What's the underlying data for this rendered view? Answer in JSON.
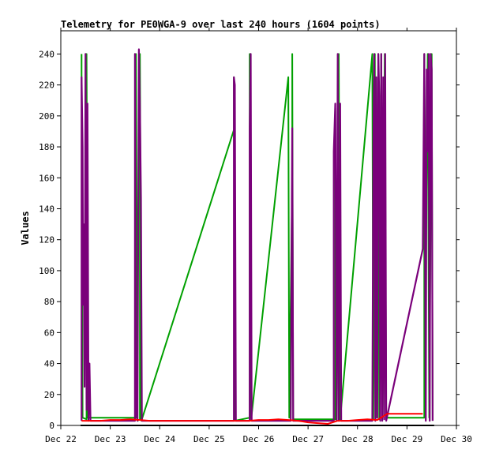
{
  "chart_data": {
    "type": "line",
    "title": "Telemetry for PE0WGA-9 over last 240 hours (1604 points)",
    "xlabel": "",
    "ylabel": "Values",
    "x_ticks": [
      "Dec 22",
      "Dec 23",
      "Dec 24",
      "Dec 25",
      "Dec 26",
      "Dec 27",
      "Dec 28",
      "Dec 29",
      "Dec 30"
    ],
    "xlim_days": [
      22,
      30
    ],
    "ylim": [
      0,
      255
    ],
    "y_ticks": [
      0,
      20,
      40,
      60,
      80,
      100,
      120,
      140,
      160,
      180,
      200,
      220,
      240
    ],
    "grid": false,
    "legend": "none",
    "series": [
      {
        "color": "#00a000",
        "points": [
          [
            22.42,
            240
          ],
          [
            22.42,
            225
          ],
          [
            22.44,
            5
          ],
          [
            22.52,
            4
          ],
          [
            22.52,
            240
          ],
          [
            22.55,
            5
          ],
          [
            23.52,
            5
          ],
          [
            23.52,
            240
          ],
          [
            23.55,
            3
          ],
          [
            23.6,
            4
          ],
          [
            23.6,
            240
          ],
          [
            23.63,
            3
          ],
          [
            25.5,
            191
          ],
          [
            25.5,
            225
          ],
          [
            25.52,
            3
          ],
          [
            25.82,
            5
          ],
          [
            25.82,
            240
          ],
          [
            25.85,
            4
          ],
          [
            26.6,
            225
          ],
          [
            26.62,
            5
          ],
          [
            26.68,
            160
          ],
          [
            26.68,
            240
          ],
          [
            26.7,
            4
          ],
          [
            27.55,
            4
          ],
          [
            27.55,
            205
          ],
          [
            27.58,
            3
          ],
          [
            27.62,
            240
          ],
          [
            27.65,
            4
          ],
          [
            28.3,
            240
          ],
          [
            28.32,
            4
          ],
          [
            28.35,
            240
          ],
          [
            28.37,
            5
          ],
          [
            28.42,
            240
          ],
          [
            28.44,
            4
          ],
          [
            28.48,
            240
          ],
          [
            28.5,
            5
          ],
          [
            28.55,
            240
          ],
          [
            28.58,
            5
          ],
          [
            29.35,
            5
          ],
          [
            29.35,
            240
          ],
          [
            29.38,
            110
          ],
          [
            29.42,
            240
          ],
          [
            29.45,
            5
          ],
          [
            29.5,
            240
          ],
          [
            29.52,
            3
          ]
        ]
      },
      {
        "color": "#7a007a",
        "points": [
          [
            22.42,
            3
          ],
          [
            22.42,
            225
          ],
          [
            22.44,
            180
          ],
          [
            22.45,
            78
          ],
          [
            22.46,
            130
          ],
          [
            22.48,
            25
          ],
          [
            22.5,
            240
          ],
          [
            22.52,
            10
          ],
          [
            22.54,
            208
          ],
          [
            22.56,
            3
          ],
          [
            22.58,
            40
          ],
          [
            22.6,
            3
          ],
          [
            23.5,
            3
          ],
          [
            23.5,
            240
          ],
          [
            23.52,
            10
          ],
          [
            23.55,
            3
          ],
          [
            23.58,
            243
          ],
          [
            23.6,
            205
          ],
          [
            23.62,
            147
          ],
          [
            23.64,
            3
          ],
          [
            25.5,
            3
          ],
          [
            25.5,
            225
          ],
          [
            25.52,
            220
          ],
          [
            25.54,
            3
          ],
          [
            25.82,
            3
          ],
          [
            25.82,
            192
          ],
          [
            25.84,
            240
          ],
          [
            25.86,
            3
          ],
          [
            26.65,
            3
          ],
          [
            26.68,
            192
          ],
          [
            26.7,
            3
          ],
          [
            27.52,
            3
          ],
          [
            27.52,
            177
          ],
          [
            27.55,
            208
          ],
          [
            27.58,
            3
          ],
          [
            27.6,
            240
          ],
          [
            27.62,
            3
          ],
          [
            27.65,
            208
          ],
          [
            27.67,
            3
          ],
          [
            28.3,
            3
          ],
          [
            28.32,
            178
          ],
          [
            28.34,
            240
          ],
          [
            28.36,
            3
          ],
          [
            28.38,
            225
          ],
          [
            28.4,
            5
          ],
          [
            28.42,
            240
          ],
          [
            28.44,
            213
          ],
          [
            28.46,
            3
          ],
          [
            28.48,
            240
          ],
          [
            28.5,
            3
          ],
          [
            28.52,
            225
          ],
          [
            28.54,
            4
          ],
          [
            28.56,
            240
          ],
          [
            28.58,
            3
          ],
          [
            29.32,
            114
          ],
          [
            29.35,
            240
          ],
          [
            29.38,
            3
          ],
          [
            29.4,
            230
          ],
          [
            29.42,
            177
          ],
          [
            29.44,
            240
          ],
          [
            29.46,
            3
          ],
          [
            29.48,
            240
          ],
          [
            29.5,
            230
          ],
          [
            29.52,
            3
          ]
        ]
      },
      {
        "color": "#ff0000",
        "points": [
          [
            22.42,
            3
          ],
          [
            22.55,
            3
          ],
          [
            22.65,
            3
          ],
          [
            22.8,
            3
          ],
          [
            23.0,
            3.5
          ],
          [
            23.2,
            3.5
          ],
          [
            23.4,
            4
          ],
          [
            23.6,
            3.5
          ],
          [
            23.8,
            3
          ],
          [
            24.2,
            3
          ],
          [
            24.6,
            3
          ],
          [
            25.0,
            3
          ],
          [
            25.4,
            3
          ],
          [
            25.8,
            3
          ],
          [
            26.0,
            3.5
          ],
          [
            26.2,
            3.5
          ],
          [
            26.4,
            4
          ],
          [
            26.6,
            3.5
          ],
          [
            26.8,
            3
          ],
          [
            27.0,
            2
          ],
          [
            27.2,
            1.5
          ],
          [
            27.4,
            1
          ],
          [
            27.5,
            2
          ],
          [
            27.6,
            3
          ],
          [
            27.8,
            3
          ],
          [
            28.0,
            3.5
          ],
          [
            28.2,
            4
          ],
          [
            28.4,
            3.5
          ],
          [
            28.6,
            7.5
          ],
          [
            28.8,
            7.5
          ],
          [
            29.0,
            7.5
          ],
          [
            29.2,
            7.5
          ],
          [
            29.32,
            7.5
          ]
        ]
      },
      {
        "color": "#000000",
        "points": [
          [
            22.4,
            0
          ],
          [
            23.0,
            0
          ],
          [
            24.0,
            0
          ],
          [
            25.0,
            0
          ],
          [
            26.0,
            0
          ],
          [
            27.0,
            0
          ],
          [
            28.0,
            0
          ],
          [
            29.0,
            0
          ],
          [
            29.55,
            0
          ]
        ]
      }
    ]
  }
}
